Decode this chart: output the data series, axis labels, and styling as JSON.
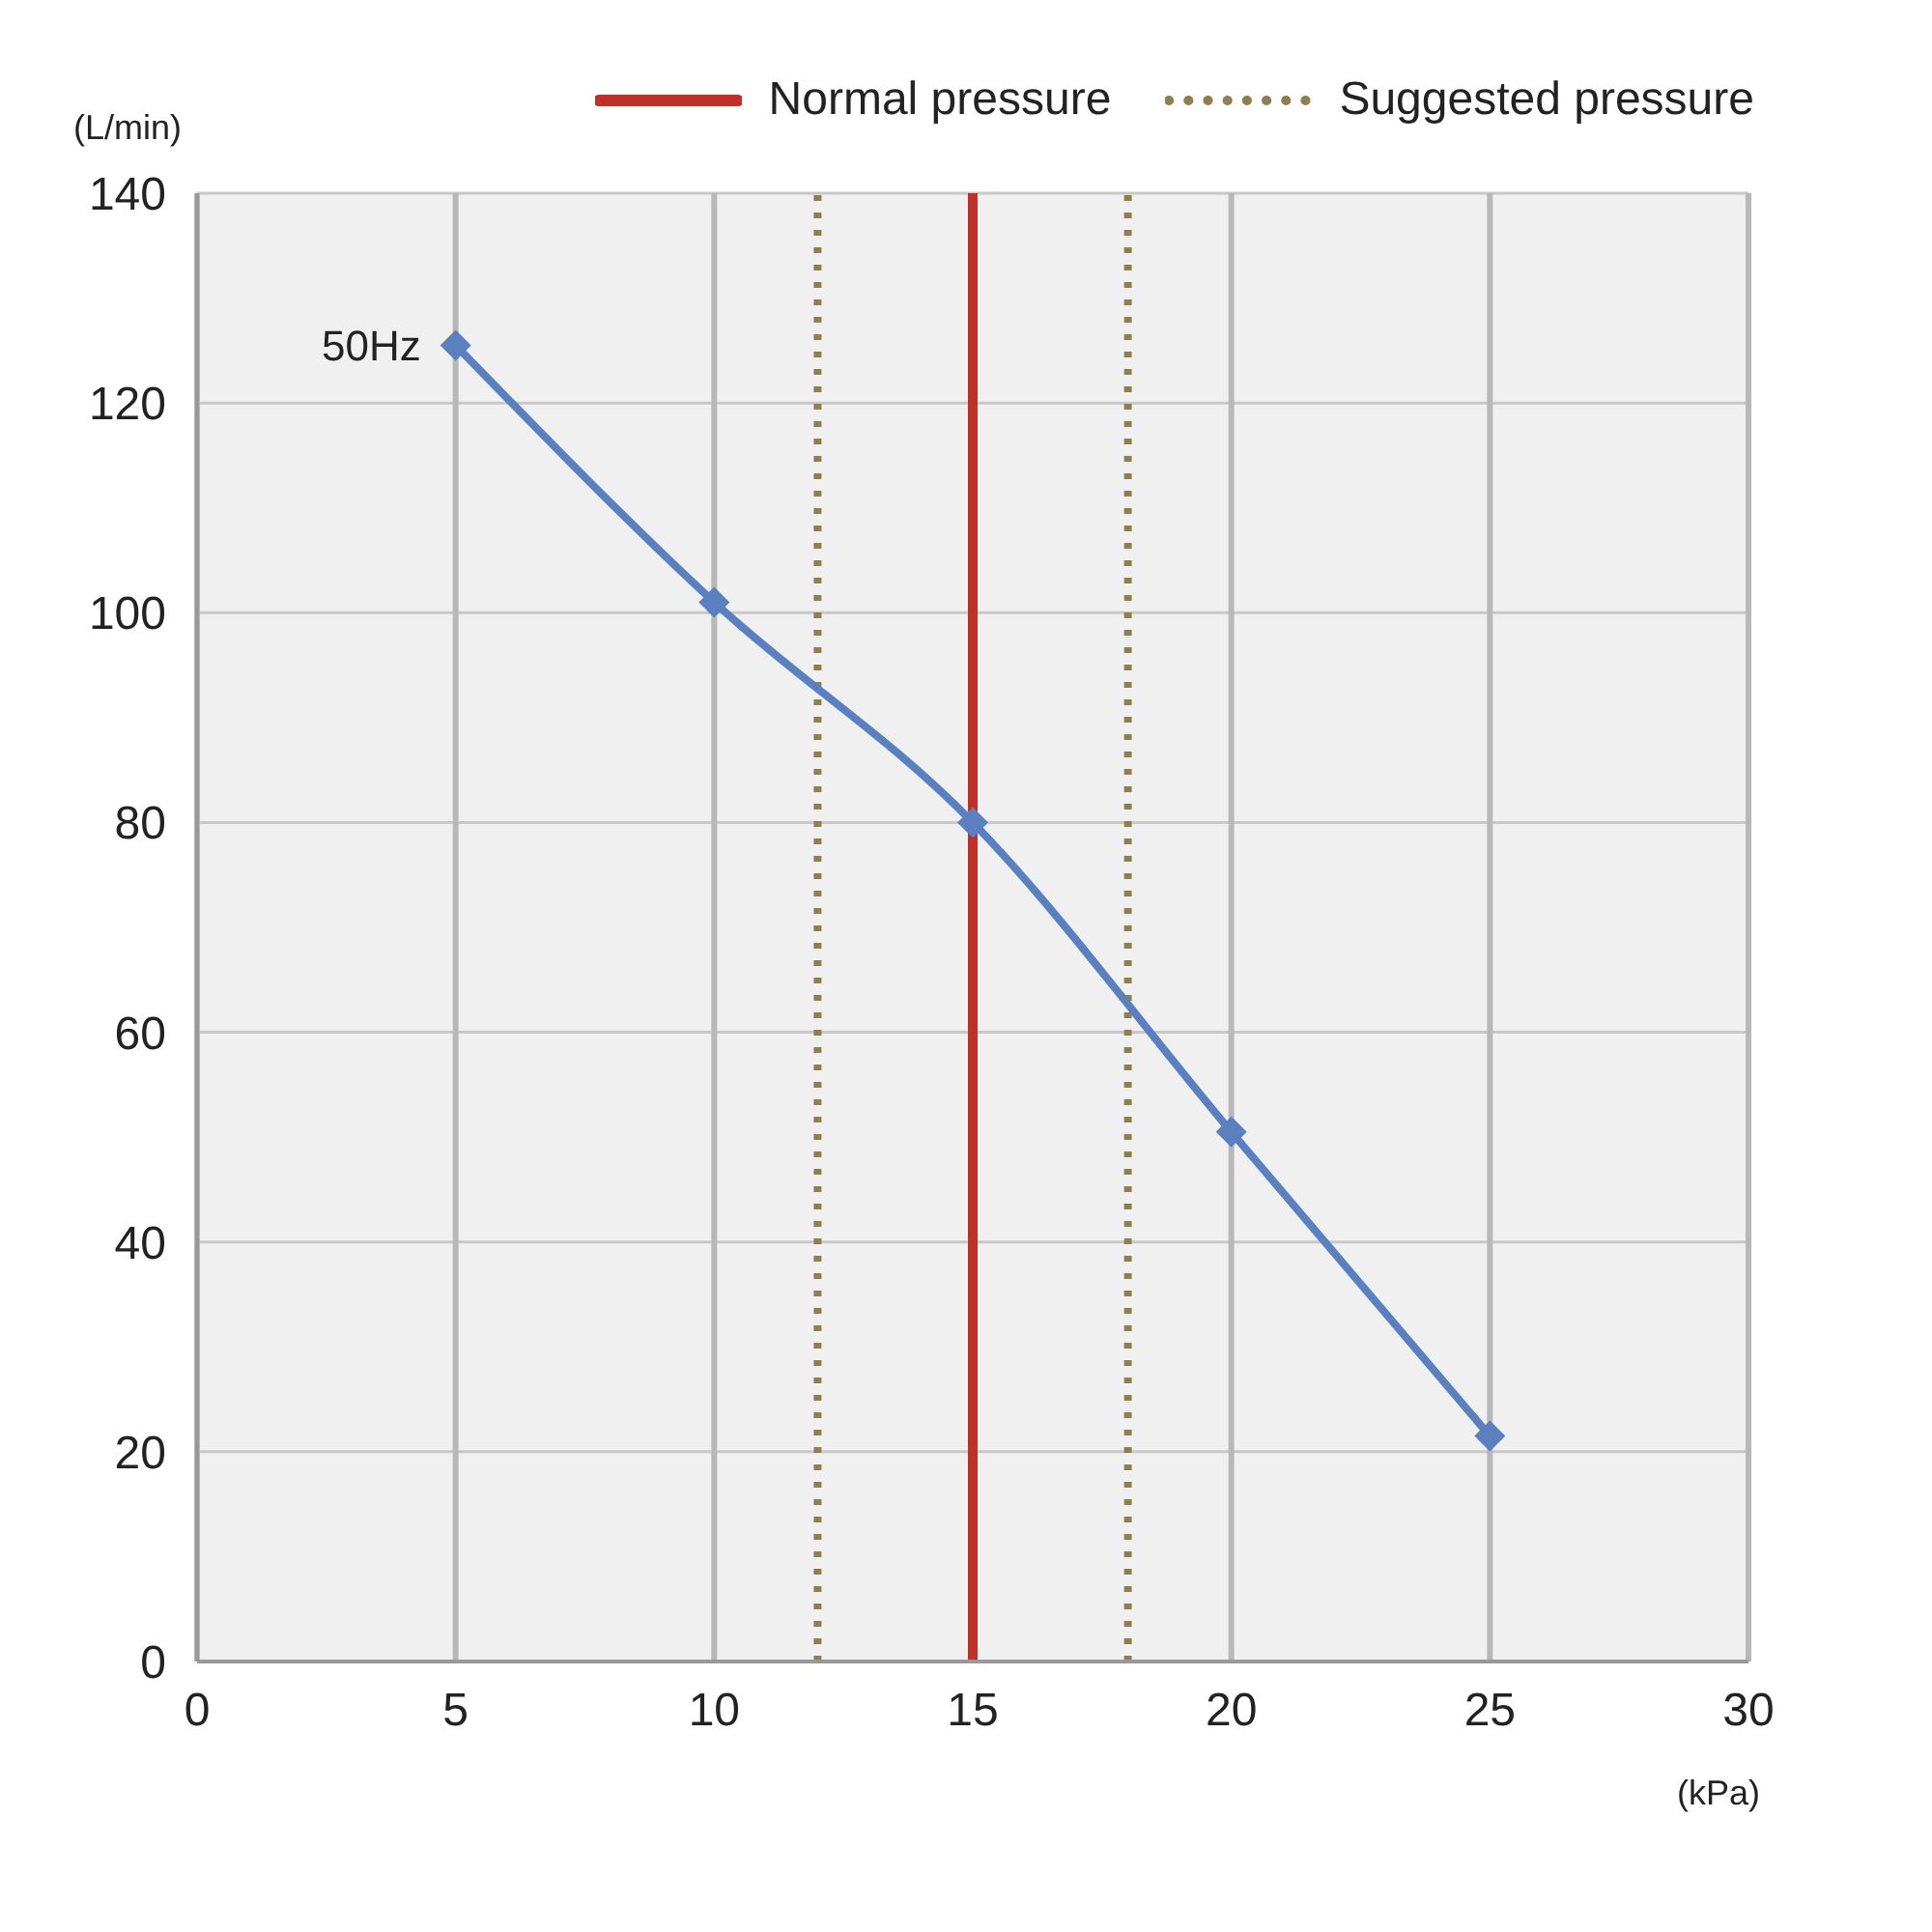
{
  "chart_data": {
    "type": "line",
    "xlabel": "(kPa)",
    "ylabel": "(L/min)",
    "x": [
      5,
      10,
      15,
      20,
      25
    ],
    "series": [
      {
        "name": "50Hz",
        "color": "#5b80c0",
        "values": [
          125.5,
          101,
          80,
          50.5,
          21.5
        ]
      }
    ],
    "xlim": [
      0,
      30
    ],
    "xticks": [
      0,
      5,
      10,
      15,
      20,
      25,
      30
    ],
    "ylim": [
      0,
      140
    ],
    "yticks": [
      0,
      20,
      40,
      60,
      80,
      100,
      120,
      140
    ],
    "grid": true,
    "marker": "diamond",
    "line_style": "solid",
    "legend": "top right",
    "ref_lines": [
      {
        "axis": "x",
        "value": 15,
        "label": "Normal pressure",
        "color": "#c0302a",
        "line_style": "solid"
      },
      {
        "axis": "x",
        "value": 12,
        "label": "Suggested pressure",
        "color": "#8c8050",
        "line_style": "dotted"
      },
      {
        "axis": "x",
        "value": 18,
        "label": null,
        "color": "#8c8050",
        "line_style": "dotted"
      }
    ]
  }
}
